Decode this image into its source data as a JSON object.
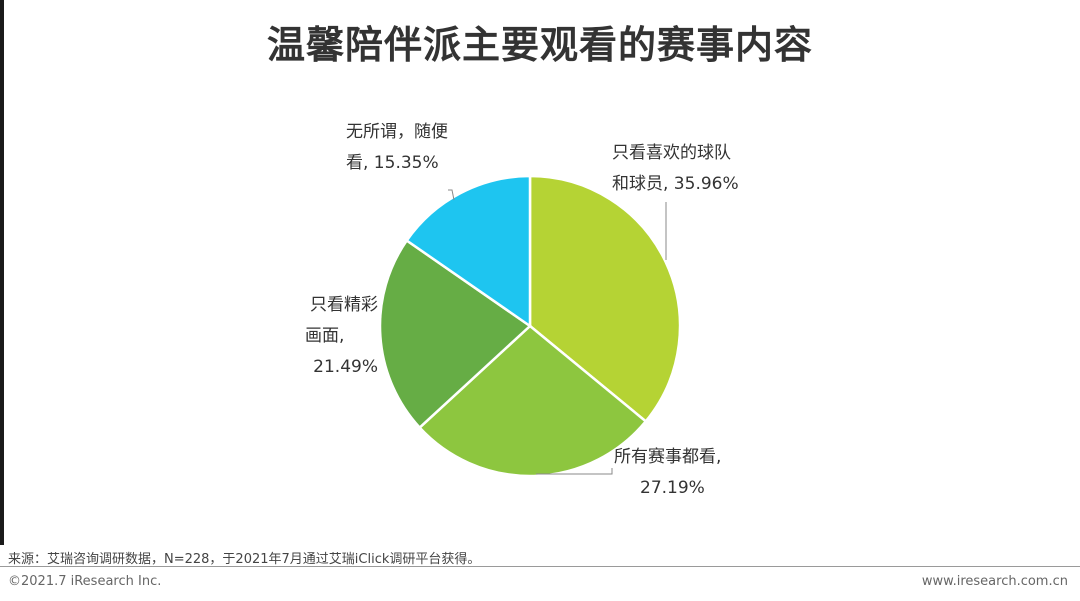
{
  "title": "温馨陪伴派主要观看的赛事内容",
  "chart_data": {
    "type": "pie",
    "slices": [
      {
        "label_line1": "只看喜欢的球队",
        "label_line2": "和球员, 35.96%",
        "label_line3": "",
        "value": 35.96,
        "color": "#b5d334"
      },
      {
        "label_line1": "所有赛事都看,",
        "label_line2": "27.19%",
        "label_line3": "",
        "value": 27.19,
        "color": "#8dc63f"
      },
      {
        "label_line1": "只看精彩",
        "label_line2": "画面,",
        "label_line3": "21.49%",
        "value": 21.49,
        "color": "#66ad45"
      },
      {
        "label_line1": "无所谓，随便",
        "label_line2": "看, 15.35%",
        "label_line3": "",
        "value": 15.35,
        "color": "#1ec5f0"
      }
    ]
  },
  "footer": {
    "source": "来源：艾瑞咨询调研数据，N=228，于2021年7月通过艾瑞iClick调研平台获得。",
    "copyright": "©2021.7 iResearch Inc.",
    "website": "www.iresearch.com.cn"
  }
}
